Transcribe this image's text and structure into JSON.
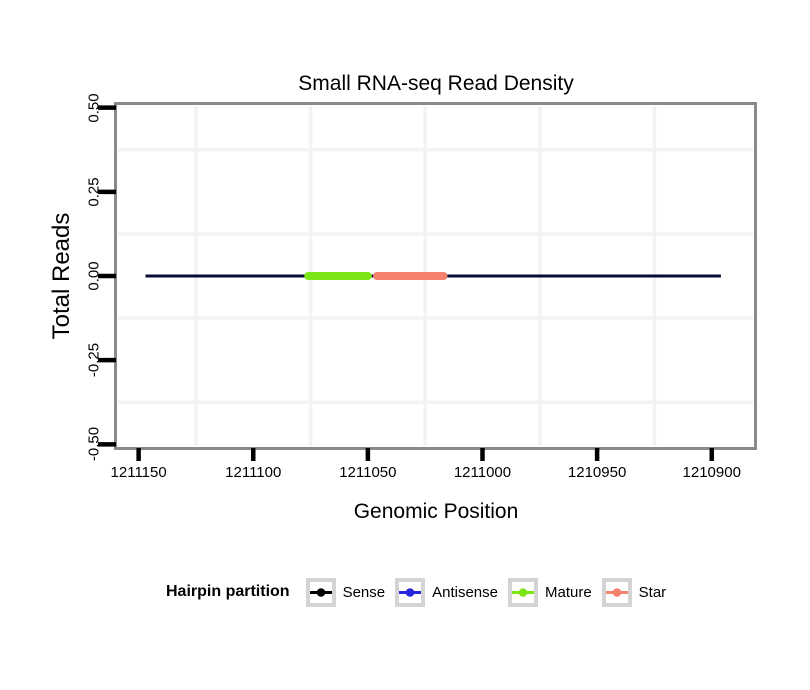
{
  "chart_data": {
    "type": "line",
    "title": "Small RNA-seq Read Density",
    "xlabel": "Genomic Position",
    "ylabel": "Total Reads",
    "x_ticks": [
      1211150,
      1211100,
      1211050,
      1211000,
      1210950,
      1210900
    ],
    "x_tick_labels": [
      "1211150",
      "1211100",
      "1211050",
      "1211000",
      "1210950",
      "1210900"
    ],
    "x_reversed": true,
    "xlim": [
      1211159,
      1210882
    ],
    "y_ticks": [
      0.5,
      0.25,
      0,
      -0.25,
      -0.5
    ],
    "y_tick_labels": [
      "0.50",
      "0.25",
      "0.00",
      "-0.25",
      "-0.50"
    ],
    "ylim": [
      -0.505,
      0.505
    ],
    "grid": {
      "minor_gridlines_only": true,
      "color": "#f3f3f3"
    },
    "panel": {
      "border_color": "#8a8a8a",
      "background": "#ffffff",
      "tick_color": "#000000"
    },
    "series": [
      {
        "name": "Sense",
        "color": "#0a0a37",
        "y": 0,
        "x_start": 1211147,
        "x_end": 1210896,
        "stroke_px": 3,
        "cap": "butt",
        "visible": true
      },
      {
        "name": "Antisense",
        "color": "#2525de",
        "visible": false
      },
      {
        "name": "Mature",
        "color": "#7be515",
        "y": 0,
        "x_start": 1211076,
        "x_end": 1211050,
        "stroke_px": 8,
        "cap": "round",
        "visible": true
      },
      {
        "name": "Star",
        "color": "#f5826e",
        "y": 0,
        "x_start": 1211046,
        "x_end": 1211017,
        "stroke_px": 8,
        "cap": "round",
        "visible": true
      }
    ],
    "legend": {
      "title": "Hairpin partition",
      "position": "bottom",
      "key_border_color": "#d4d4d4",
      "entries": [
        {
          "label": "Sense",
          "color": "#000000"
        },
        {
          "label": "Antisense",
          "color": "#2525de"
        },
        {
          "label": "Mature",
          "color": "#7be515"
        },
        {
          "label": "Star",
          "color": "#f5826e"
        }
      ]
    }
  }
}
